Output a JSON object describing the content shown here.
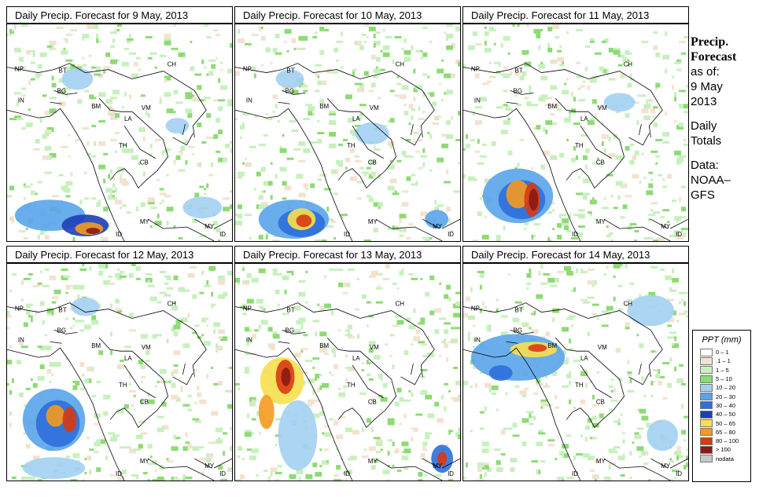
{
  "panels": [
    {
      "title": "Daily Precip. Forecast for  9 May, 2013",
      "variant": 0
    },
    {
      "title": "Daily Precip. Forecast for  10 May, 2013",
      "variant": 1
    },
    {
      "title": "Daily Precip. Forecast for  11 May, 2013",
      "variant": 2
    },
    {
      "title": "Daily Precip. Forecast for  12 May, 2013",
      "variant": 3
    },
    {
      "title": "Daily Precip. Forecast for  13 May, 2013",
      "variant": 4
    },
    {
      "title": "Daily Precip. Forecast for  14 May, 2013",
      "variant": 5
    }
  ],
  "country_labels": [
    "NP",
    "BT",
    "BG",
    "IN",
    "CH",
    "BM",
    "VM",
    "LA",
    "TH",
    "CB",
    "MY",
    "ID",
    "MY",
    "ID"
  ],
  "side": {
    "title_line1": "Precip.",
    "title_line2": "Forecast",
    "asof": "as of:",
    "date_line1": "9 May",
    "date_line2": "2013",
    "daily_line1": "Daily",
    "daily_line2": "Totals",
    "data_line1": "Data:",
    "data_line2": "NOAA–",
    "data_line3": "GFS"
  },
  "legend": {
    "title": "PPT (mm)",
    "classes": [
      {
        "label": "0 – 1",
        "color": "#ffffff"
      },
      {
        "label": ".1 – 1",
        "color": "#f2e2cf"
      },
      {
        "label": "1 – 5",
        "color": "#c7f0bd"
      },
      {
        "label": "5 – 10",
        "color": "#8ddb74"
      },
      {
        "label": "10 – 20",
        "color": "#a3d0f2"
      },
      {
        "label": "20 – 30",
        "color": "#5aa4ea"
      },
      {
        "label": "30 – 40",
        "color": "#2d6fdb"
      },
      {
        "label": "40 – 50",
        "color": "#1d3fb8"
      },
      {
        "label": "50 – 65",
        "color": "#f7e04f"
      },
      {
        "label": "65 – 80",
        "color": "#f59a1f"
      },
      {
        "label": "80 – 100",
        "color": "#d93a12"
      },
      {
        "label": "> 100",
        "color": "#8a1a12"
      },
      {
        "label": "nodata",
        "color": "#c8c8c8"
      }
    ]
  }
}
